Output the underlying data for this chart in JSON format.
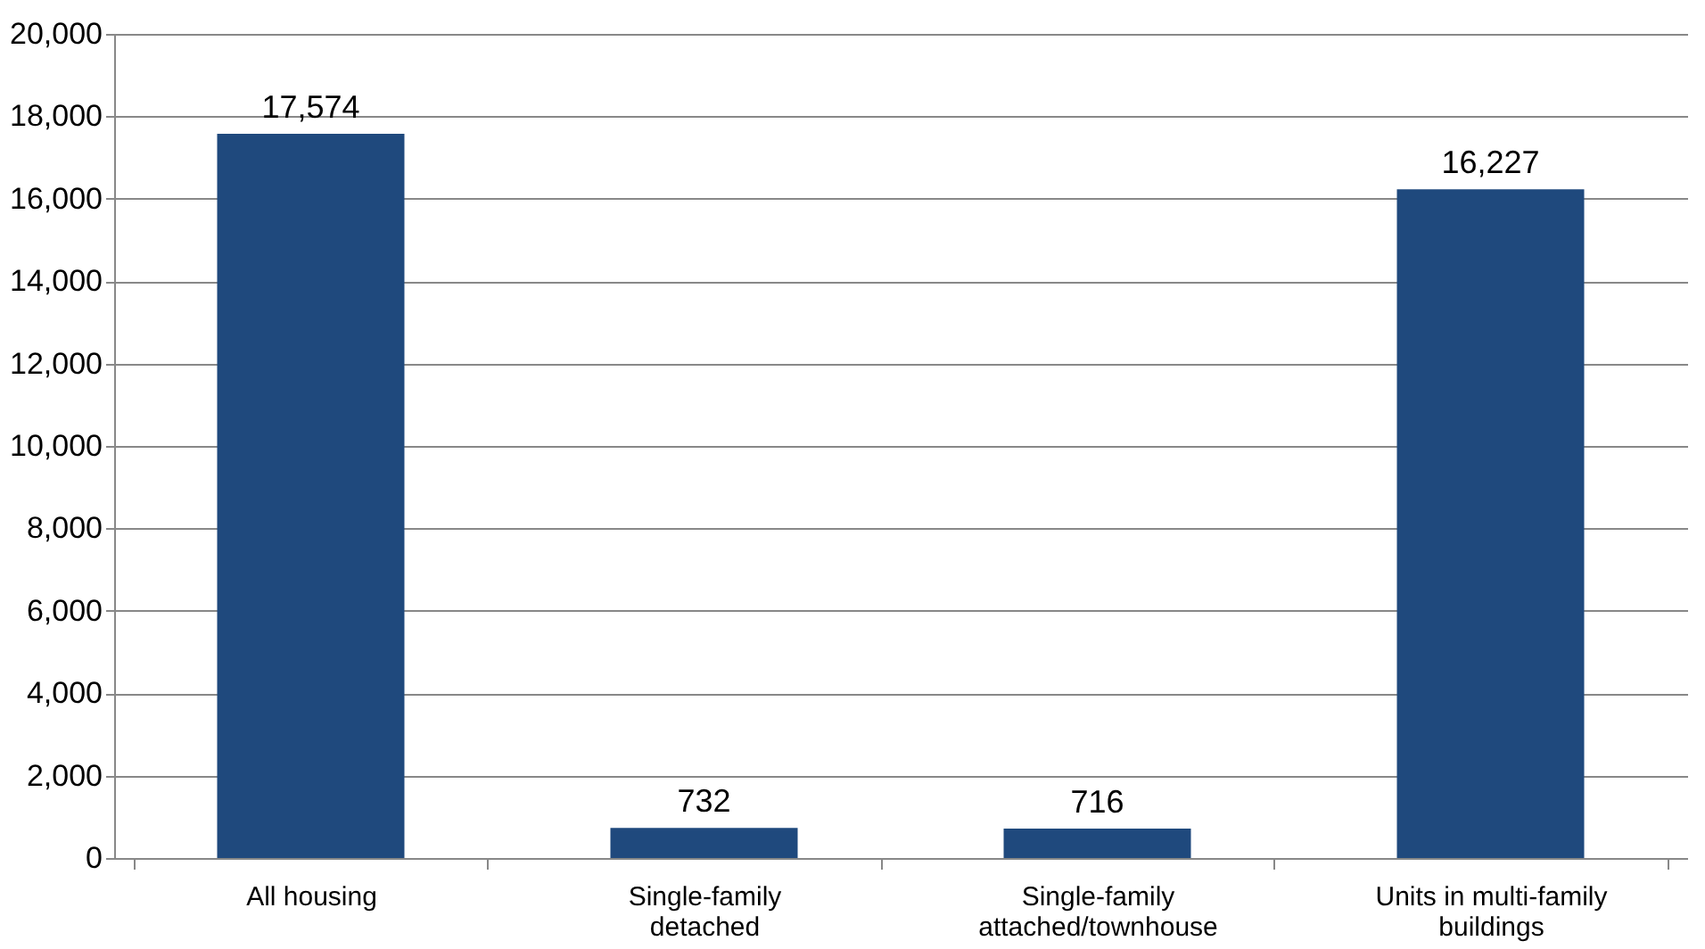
{
  "chart_data": {
    "type": "bar",
    "categories": [
      "All housing",
      "Single-family detached",
      "Single-family attached/townhouse",
      "Units in multi-family buildings"
    ],
    "values": [
      17574,
      732,
      716,
      16227
    ],
    "color": "#1f497d",
    "data_labels": true,
    "value_labels": [
      "17,574",
      "732",
      "716",
      "16,227"
    ],
    "ylim": [
      0,
      20000
    ],
    "yticks": [
      0,
      {
        "value": 2000,
        "label": "2,000"
      },
      {
        "value": 4000,
        "label": "4,000"
      },
      {
        "value": 6000,
        "label": "6,000"
      },
      {
        "value": 8000,
        "label": "8,000"
      },
      {
        "value": 10000,
        "label": "10,000"
      },
      {
        "value": 12000,
        "label": "12,000"
      },
      {
        "value": 14000,
        "label": "14,000"
      },
      {
        "value": 16000,
        "label": "16,000"
      },
      {
        "value": 18000,
        "label": "18,000"
      },
      {
        "value": 20000,
        "label": "20,000"
      }
    ],
    "grid": "y"
  }
}
